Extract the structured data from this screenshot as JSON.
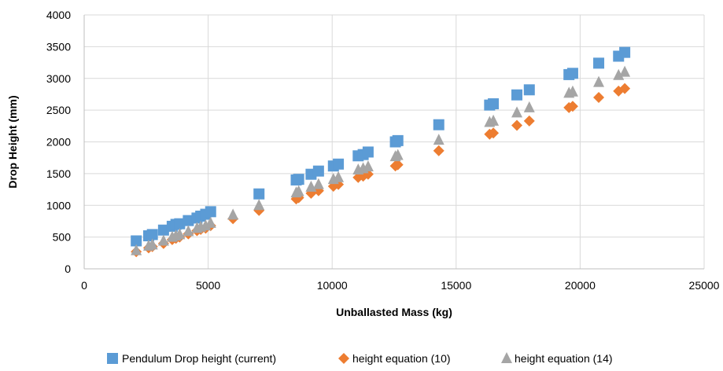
{
  "chart_data": {
    "type": "scatter",
    "xlabel": "Unballasted Mass (kg)",
    "ylabel": "Drop Height (mm)",
    "xlim": [
      0,
      25000
    ],
    "ylim": [
      0,
      4000
    ],
    "xticks": [
      0,
      5000,
      10000,
      15000,
      20000,
      25000
    ],
    "yticks": [
      0,
      500,
      1000,
      1500,
      2000,
      2500,
      3000,
      3500,
      4000
    ],
    "grid": true,
    "legend_position": "bottom",
    "series": [
      {
        "name": "Pendulum Drop height (current)",
        "marker": "square",
        "color": "#5B9BD5",
        "points": [
          [
            2100,
            440
          ],
          [
            2600,
            520
          ],
          [
            2750,
            540
          ],
          [
            3200,
            610
          ],
          [
            3550,
            670
          ],
          [
            3700,
            700
          ],
          [
            3850,
            710
          ],
          [
            4200,
            760
          ],
          [
            4550,
            800
          ],
          [
            4700,
            830
          ],
          [
            4900,
            860
          ],
          [
            5100,
            900
          ],
          [
            7050,
            1180
          ],
          [
            8550,
            1400
          ],
          [
            8650,
            1410
          ],
          [
            9150,
            1490
          ],
          [
            9450,
            1540
          ],
          [
            10050,
            1620
          ],
          [
            10250,
            1650
          ],
          [
            11050,
            1780
          ],
          [
            11250,
            1800
          ],
          [
            11450,
            1840
          ],
          [
            12550,
            2000
          ],
          [
            12650,
            2020
          ],
          [
            14300,
            2270
          ],
          [
            16350,
            2580
          ],
          [
            16500,
            2600
          ],
          [
            17450,
            2740
          ],
          [
            17950,
            2820
          ],
          [
            19550,
            3060
          ],
          [
            19700,
            3080
          ],
          [
            20750,
            3240
          ],
          [
            21550,
            3350
          ],
          [
            21800,
            3410
          ]
        ]
      },
      {
        "name": "height equation (10)",
        "marker": "diamond",
        "color": "#ED7D31",
        "points": [
          [
            2100,
            270
          ],
          [
            2600,
            330
          ],
          [
            2750,
            350
          ],
          [
            3200,
            400
          ],
          [
            3550,
            460
          ],
          [
            3700,
            480
          ],
          [
            3850,
            500
          ],
          [
            4200,
            550
          ],
          [
            4550,
            600
          ],
          [
            4700,
            620
          ],
          [
            4900,
            640
          ],
          [
            5100,
            680
          ],
          [
            6000,
            790
          ],
          [
            7050,
            920
          ],
          [
            8550,
            1100
          ],
          [
            8650,
            1120
          ],
          [
            9150,
            1190
          ],
          [
            9450,
            1230
          ],
          [
            10050,
            1300
          ],
          [
            10250,
            1330
          ],
          [
            11050,
            1440
          ],
          [
            11250,
            1460
          ],
          [
            11450,
            1490
          ],
          [
            12550,
            1620
          ],
          [
            12650,
            1640
          ],
          [
            14300,
            1860
          ],
          [
            16350,
            2120
          ],
          [
            16500,
            2140
          ],
          [
            17450,
            2260
          ],
          [
            17950,
            2330
          ],
          [
            19550,
            2540
          ],
          [
            19700,
            2560
          ],
          [
            20750,
            2700
          ],
          [
            21550,
            2800
          ],
          [
            21800,
            2840
          ]
        ]
      },
      {
        "name": "height equation (14)",
        "marker": "triangle",
        "color": "#A5A5A5",
        "points": [
          [
            2100,
            290
          ],
          [
            2600,
            360
          ],
          [
            2750,
            380
          ],
          [
            3200,
            440
          ],
          [
            3550,
            500
          ],
          [
            3700,
            520
          ],
          [
            3850,
            540
          ],
          [
            4200,
            590
          ],
          [
            4550,
            640
          ],
          [
            4700,
            660
          ],
          [
            4900,
            680
          ],
          [
            5100,
            720
          ],
          [
            6000,
            850
          ],
          [
            7050,
            1000
          ],
          [
            8550,
            1200
          ],
          [
            8650,
            1220
          ],
          [
            9150,
            1290
          ],
          [
            9450,
            1330
          ],
          [
            10050,
            1410
          ],
          [
            10250,
            1440
          ],
          [
            11050,
            1560
          ],
          [
            11250,
            1580
          ],
          [
            11450,
            1610
          ],
          [
            12550,
            1770
          ],
          [
            12650,
            1790
          ],
          [
            14300,
            2030
          ],
          [
            16350,
            2310
          ],
          [
            16500,
            2330
          ],
          [
            17450,
            2460
          ],
          [
            17950,
            2540
          ],
          [
            19550,
            2770
          ],
          [
            19700,
            2790
          ],
          [
            20750,
            2940
          ],
          [
            21550,
            3050
          ],
          [
            21800,
            3100
          ]
        ]
      }
    ]
  }
}
